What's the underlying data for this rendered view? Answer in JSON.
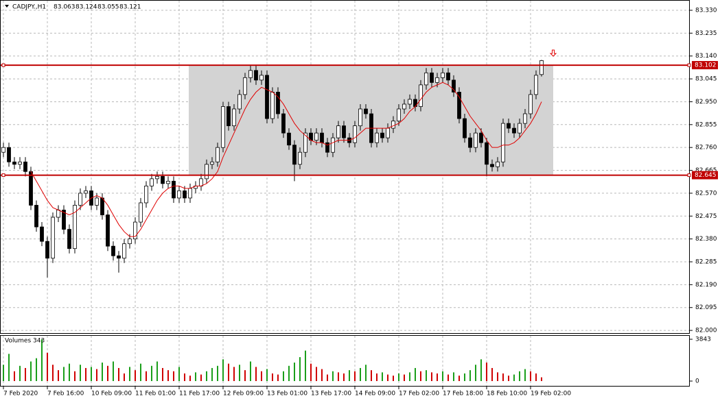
{
  "chart_data": [
    {
      "type": "candlestick",
      "title": "CADJPY.,H1",
      "open": [
        82.74,
        82.76,
        82.7,
        82.69,
        82.7,
        82.66,
        82.52,
        82.43,
        82.37,
        82.3,
        82.47,
        82.5,
        82.42,
        82.34,
        82.52,
        82.57,
        82.58,
        82.52,
        82.55,
        82.48,
        82.35,
        82.31,
        82.3,
        82.36,
        82.38,
        82.45,
        82.53,
        82.6,
        82.63,
        82.64,
        82.61,
        82.62,
        82.55,
        82.58,
        82.55,
        82.59,
        82.6,
        82.63,
        82.69,
        82.7,
        82.76,
        82.93,
        82.85,
        82.92,
        82.98,
        83.05,
        83.08,
        83.04,
        83.06,
        82.88,
        82.99,
        82.9,
        82.82,
        82.77,
        82.69,
        82.74,
        82.82,
        82.79,
        82.82,
        82.78,
        82.74,
        82.8,
        82.85,
        82.8,
        82.78,
        82.85,
        82.92,
        82.9,
        82.78,
        82.82,
        82.8,
        82.84,
        82.87,
        82.92,
        82.94,
        82.96,
        82.93,
        83.02,
        83.07,
        83.03,
        83.05,
        83.07,
        83.04,
        82.99,
        82.88,
        82.8,
        82.76,
        82.82,
        82.78,
        82.69,
        82.68,
        82.7,
        82.86,
        82.84,
        82.82,
        82.86,
        82.9,
        82.98,
        83.063
      ],
      "high": [
        82.78,
        82.78,
        82.72,
        82.72,
        82.72,
        82.68,
        82.54,
        82.45,
        82.39,
        82.49,
        82.52,
        82.52,
        82.44,
        82.54,
        82.59,
        82.6,
        82.6,
        82.57,
        82.57,
        82.5,
        82.37,
        82.33,
        82.38,
        82.4,
        82.47,
        82.55,
        82.62,
        82.65,
        82.66,
        82.66,
        82.64,
        82.64,
        82.6,
        82.6,
        82.61,
        82.62,
        82.65,
        82.71,
        82.72,
        82.78,
        82.95,
        82.95,
        82.94,
        83.0,
        83.07,
        83.1,
        83.1,
        83.08,
        83.08,
        83.01,
        83.01,
        82.92,
        82.84,
        82.79,
        82.76,
        82.84,
        82.84,
        82.84,
        82.84,
        82.8,
        82.82,
        82.87,
        82.87,
        82.82,
        82.87,
        82.94,
        82.94,
        82.92,
        82.84,
        82.84,
        82.86,
        82.89,
        82.94,
        82.96,
        82.98,
        82.98,
        83.04,
        83.09,
        83.09,
        83.07,
        83.09,
        83.09,
        83.06,
        83.01,
        82.9,
        82.82,
        82.84,
        82.84,
        82.8,
        82.71,
        82.72,
        82.88,
        82.88,
        82.86,
        82.88,
        82.92,
        83.0,
        83.08,
        83.124
      ],
      "low": [
        82.72,
        82.68,
        82.67,
        82.67,
        82.64,
        82.5,
        82.41,
        82.35,
        82.22,
        82.28,
        82.45,
        82.4,
        82.32,
        82.32,
        82.5,
        82.55,
        82.5,
        82.5,
        82.46,
        82.33,
        82.29,
        82.24,
        82.28,
        82.34,
        82.36,
        82.43,
        82.51,
        82.58,
        82.61,
        82.59,
        82.59,
        82.53,
        82.53,
        82.53,
        82.53,
        82.57,
        82.58,
        82.61,
        82.67,
        82.68,
        82.74,
        82.83,
        82.83,
        82.9,
        82.96,
        83.03,
        83.02,
        83.02,
        82.86,
        82.86,
        82.88,
        82.8,
        82.75,
        82.62,
        82.67,
        82.72,
        82.77,
        82.77,
        82.76,
        82.72,
        82.72,
        82.78,
        82.78,
        82.76,
        82.76,
        82.83,
        82.88,
        82.76,
        82.76,
        82.78,
        82.78,
        82.82,
        82.85,
        82.9,
        82.92,
        82.91,
        82.91,
        83.0,
        83.01,
        83.01,
        83.03,
        83.02,
        82.97,
        82.86,
        82.78,
        82.74,
        82.74,
        82.76,
        82.64,
        82.66,
        82.66,
        82.68,
        82.82,
        82.8,
        82.8,
        82.84,
        82.88,
        82.96,
        83.055
      ],
      "close": [
        82.76,
        82.7,
        82.69,
        82.7,
        82.66,
        82.52,
        82.43,
        82.37,
        82.3,
        82.47,
        82.5,
        82.42,
        82.34,
        82.52,
        82.57,
        82.58,
        82.52,
        82.55,
        82.48,
        82.35,
        82.31,
        82.3,
        82.36,
        82.38,
        82.45,
        82.53,
        82.6,
        82.63,
        82.64,
        82.61,
        82.62,
        82.55,
        82.58,
        82.55,
        82.59,
        82.6,
        82.63,
        82.69,
        82.7,
        82.76,
        82.93,
        82.85,
        82.92,
        82.98,
        83.05,
        83.08,
        83.04,
        83.06,
        82.88,
        82.99,
        82.9,
        82.82,
        82.77,
        82.69,
        82.74,
        82.82,
        82.79,
        82.82,
        82.78,
        82.74,
        82.8,
        82.85,
        82.8,
        82.78,
        82.85,
        82.92,
        82.9,
        82.78,
        82.82,
        82.8,
        82.84,
        82.87,
        82.92,
        82.94,
        82.96,
        82.93,
        83.02,
        83.07,
        83.03,
        83.05,
        83.07,
        83.04,
        82.99,
        82.88,
        82.8,
        82.76,
        82.82,
        82.78,
        82.69,
        82.68,
        82.7,
        82.86,
        82.84,
        82.82,
        82.86,
        82.9,
        82.98,
        83.06,
        83.121
      ],
      "ma": [
        null,
        null,
        null,
        null,
        null,
        82.66,
        82.62,
        82.58,
        82.54,
        82.51,
        82.5,
        82.49,
        82.48,
        82.49,
        82.51,
        82.53,
        82.55,
        82.56,
        82.55,
        82.52,
        82.48,
        82.44,
        82.41,
        82.39,
        82.39,
        82.42,
        82.46,
        82.5,
        82.54,
        82.57,
        82.59,
        82.6,
        82.6,
        82.59,
        82.59,
        82.6,
        82.6,
        82.61,
        82.63,
        82.66,
        82.72,
        82.77,
        82.82,
        82.87,
        82.92,
        82.96,
        82.99,
        83.01,
        83.0,
        82.99,
        82.97,
        82.94,
        82.9,
        82.86,
        82.83,
        82.81,
        82.79,
        82.78,
        82.78,
        82.77,
        82.78,
        82.79,
        82.79,
        82.79,
        82.8,
        82.82,
        82.84,
        82.84,
        82.84,
        82.84,
        82.84,
        82.85,
        82.86,
        82.88,
        82.91,
        82.93,
        82.96,
        82.99,
        83.01,
        83.02,
        83.03,
        83.02,
        83.0,
        82.97,
        82.93,
        82.89,
        82.86,
        82.83,
        82.79,
        82.76,
        82.76,
        82.77,
        82.77,
        82.78,
        82.8,
        82.83,
        82.86,
        82.9,
        82.95
      ],
      "ma_color": "#e00000",
      "levels": [
        83.102,
        82.645
      ],
      "level_color": "#c00000",
      "zone_color": "#d3d3d3",
      "ylim": [
        81.986,
        83.367
      ],
      "yticks": [
        {
          "value": 83.33,
          "label": "83.330"
        },
        83.235,
        {
          "value": 83.14,
          "label": "83.140"
        },
        83.045,
        {
          "value": 82.95,
          "label": "82.950"
        },
        82.855,
        {
          "value": 82.76,
          "label": "82.760"
        },
        82.665,
        {
          "value": 82.57,
          "label": "82.570"
        },
        82.475,
        {
          "value": 82.38,
          "label": "82.380"
        },
        82.285,
        {
          "value": 82.19,
          "label": "82.190"
        },
        82.095,
        {
          "value": 82.0,
          "label": "82.000"
        }
      ],
      "xticks": [
        {
          "value": 0,
          "label": "7 Feb 2020"
        },
        {
          "value": 8,
          "label": "7 Feb 16:00"
        },
        {
          "value": 16,
          "label": "10 Feb 09:00"
        },
        {
          "value": 24,
          "label": "11 Feb 01:00"
        },
        {
          "value": 32,
          "label": "11 Feb 17:00"
        },
        {
          "value": 40,
          "label": "12 Feb 09:00"
        },
        {
          "value": 48,
          "label": "13 Feb 01:00"
        },
        {
          "value": 56,
          "label": "13 Feb 17:00"
        },
        {
          "value": 64,
          "label": "14 Feb 09:00"
        },
        {
          "value": 72,
          "label": "17 Feb 02:00"
        },
        {
          "value": 80,
          "label": "17 Feb 18:00"
        },
        {
          "value": 88,
          "label": "18 Feb 10:00"
        },
        {
          "value": 96,
          "label": "19 Feb 02:00"
        }
      ],
      "grid": true
    },
    {
      "type": "bar",
      "title": "Volumes 343",
      "values": [
        1500,
        2500,
        900,
        1400,
        1200,
        1800,
        2100,
        3843,
        2600,
        1500,
        1000,
        1300,
        1600,
        900,
        1500,
        1200,
        1300,
        1100,
        1700,
        1400,
        1800,
        1200,
        700,
        1300,
        1000,
        1600,
        900,
        1400,
        1800,
        1200,
        1000,
        900,
        1300,
        700,
        500,
        800,
        600,
        900,
        1200,
        1400,
        2000,
        1600,
        1300,
        1500,
        1000,
        1800,
        1300,
        900,
        1100,
        700,
        600,
        900,
        1400,
        1700,
        2200,
        2800,
        1600,
        1300,
        1100,
        600,
        900,
        800,
        700,
        1000,
        900,
        1200,
        1500,
        1000,
        700,
        800,
        600,
        500,
        700,
        600,
        800,
        1200,
        900,
        1000,
        800,
        700,
        900,
        600,
        800,
        500,
        700,
        1000,
        1500,
        2000,
        1700,
        1200,
        800,
        700,
        500,
        600,
        900,
        1100,
        900,
        700,
        343
      ],
      "up_color": "#1a9e1a",
      "down_color": "#d00000",
      "ylim": [
        0,
        3843
      ],
      "yticks": [
        3843,
        0
      ],
      "grid": true
    }
  ]
}
